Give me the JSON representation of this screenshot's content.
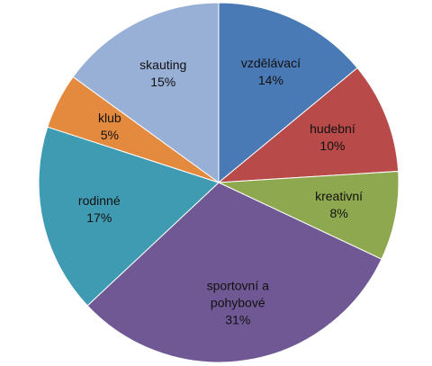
{
  "chart_data": {
    "type": "pie",
    "categories": [
      "vzdělávací",
      "hudební",
      "kreativní",
      "sportovní a pohybové",
      "rodinné",
      "klub",
      "skauting"
    ],
    "values": [
      14,
      10,
      8,
      31,
      17,
      5,
      15
    ],
    "value_labels": [
      "14%",
      "10%",
      "8%",
      "31%",
      "17%",
      "5%",
      "15%"
    ],
    "colors": [
      "#4a7ab5",
      "#b84b49",
      "#8ea84f",
      "#6f5893",
      "#3f9bb2",
      "#e38a3e",
      "#98afd6"
    ]
  }
}
